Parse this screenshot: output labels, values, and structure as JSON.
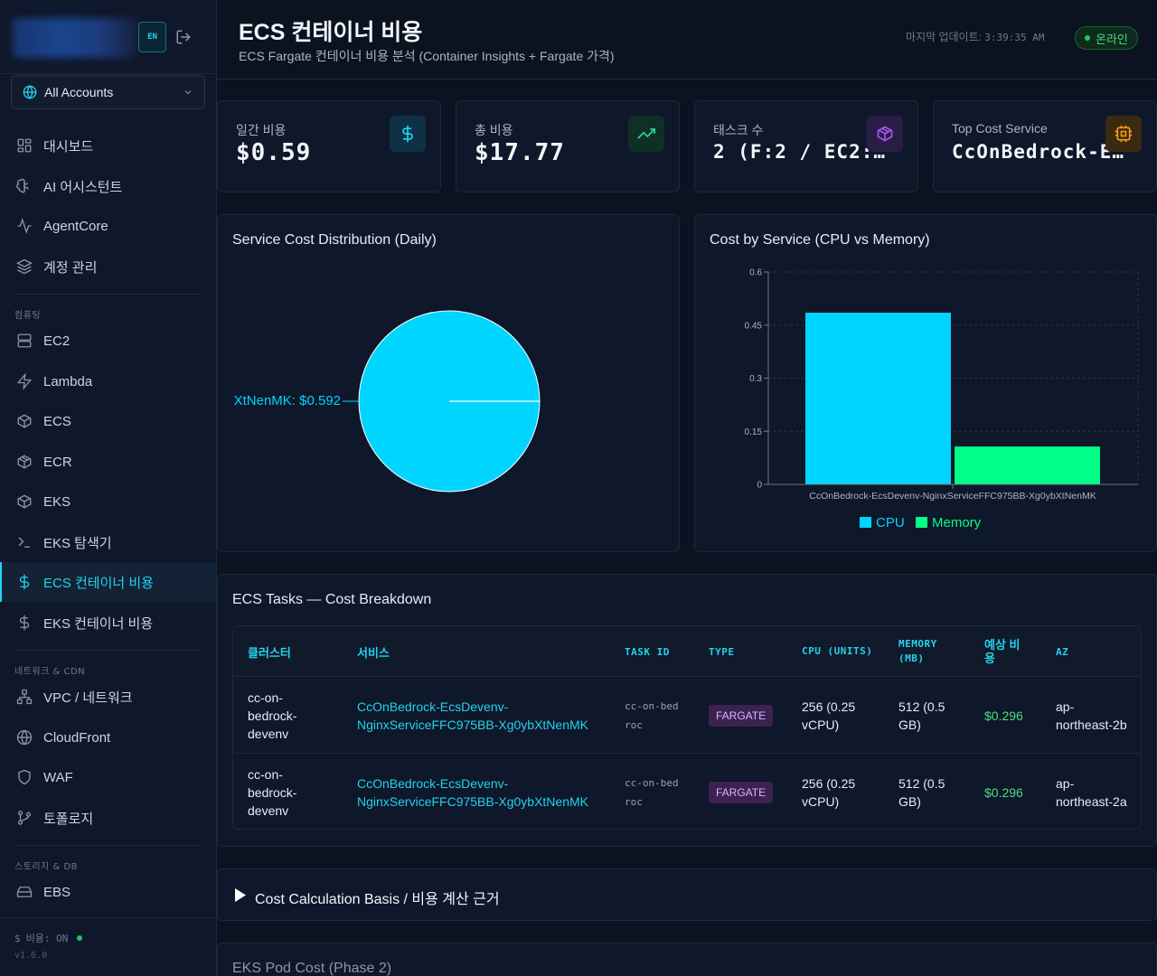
{
  "sidebar": {
    "lang": "EN",
    "account_selector": "All Accounts",
    "items": [
      {
        "label": "대시보드"
      },
      {
        "label": "AI 어시스턴트"
      },
      {
        "label": "AgentCore"
      },
      {
        "label": "계정 관리"
      },
      {
        "label": "EC2"
      },
      {
        "label": "Lambda"
      },
      {
        "label": "ECS"
      },
      {
        "label": "ECR"
      },
      {
        "label": "EKS"
      },
      {
        "label": "EKS 탐색기"
      },
      {
        "label": "ECS 컨테이너 비용"
      },
      {
        "label": "EKS 컨테이너 비용"
      },
      {
        "label": "VPC / 네트워크"
      },
      {
        "label": "CloudFront"
      },
      {
        "label": "WAF"
      },
      {
        "label": "토폴로지"
      },
      {
        "label": "EBS"
      }
    ],
    "sections": {
      "compute": "컴퓨팅",
      "network": "네트워크 & CDN",
      "storage": "스토리지 & DB"
    },
    "cost_status": "비용: ON",
    "version": "v1.6.0"
  },
  "header": {
    "title": "ECS 컨테이너 비용",
    "subtitle": "ECS Fargate 컨테이너 비용 분석 (Container Insights + Fargate 가격)",
    "updated_label": "마지막 업데이트:",
    "updated_time": "3:39:35 AM",
    "status": "온라인"
  },
  "stats": [
    {
      "label": "일간 비용",
      "value": "$0.59"
    },
    {
      "label": "총 비용",
      "value": "$17.77"
    },
    {
      "label": "태스크 수",
      "value": "2 (F:2 / EC2:…"
    },
    {
      "label": "Top Cost Service",
      "value": "CcOnBedrock-E…"
    }
  ],
  "pie": {
    "title": "Service Cost Distribution (Daily)",
    "label": "XtNenMK: $0.592"
  },
  "bar": {
    "title": "Cost by Service (CPU vs Memory)",
    "category": "CcOnBedrock-EcsDevenv-NginxServiceFFC975BB-Xg0ybXtNenMK",
    "ticks": [
      "0.6",
      "0.45",
      "0.3",
      "0.15",
      "0"
    ],
    "legend": [
      "CPU",
      "Memory"
    ]
  },
  "chart_data": [
    {
      "type": "pie",
      "title": "Service Cost Distribution (Daily)",
      "categories": [
        "CcOnBedrock-EcsDevenv-NginxServiceFFC975BB-Xg0ybXtNenMK"
      ],
      "values": [
        0.592
      ],
      "colors": [
        "#00d5ff"
      ]
    },
    {
      "type": "bar",
      "title": "Cost by Service (CPU vs Memory)",
      "categories": [
        "CcOnBedrock-EcsDevenv-NginxServiceFFC975BB-Xg0ybXtNenMK"
      ],
      "series": [
        {
          "name": "CPU",
          "values": [
            0.485
          ],
          "color": "#00d5ff"
        },
        {
          "name": "Memory",
          "values": [
            0.107
          ],
          "color": "#00ff87"
        }
      ],
      "ylim": [
        0,
        0.6
      ],
      "yticks": [
        0,
        0.15,
        0.3,
        0.45,
        0.6
      ],
      "grid": true,
      "legend": "bottom"
    }
  ],
  "table": {
    "title": "ECS Tasks — Cost Breakdown",
    "headers": [
      "클러스터",
      "서비스",
      "TASK ID",
      "TYPE",
      "CPU (UNITS)",
      "MEMORY (MB)",
      "예상 비용",
      "AZ"
    ],
    "rows": [
      [
        "cc-on-bedrock-devenv",
        "CcOnBedrock-EcsDevenv-NginxServiceFFC975BB-Xg0ybXtNenMK",
        "cc-on-bedroc",
        "FARGATE",
        "256 (0.25 vCPU)",
        "512 (0.5 GB)",
        "$0.296",
        "ap-northeast-2b"
      ],
      [
        "cc-on-bedrock-devenv",
        "CcOnBedrock-EcsDevenv-NginxServiceFFC975BB-Xg0ybXtNenMK",
        "cc-on-bedroc",
        "FARGATE",
        "256 (0.25 vCPU)",
        "512 (0.5 GB)",
        "$0.296",
        "ap-northeast-2a"
      ]
    ]
  },
  "calc_basis": "Cost Calculation Basis / 비용 계산 근거",
  "eks_section": "EKS Pod Cost (Phase 2)",
  "colors": {
    "accent": "#22d3ee",
    "cpu": "#00d5ff",
    "memory": "#00ff87",
    "cost": "#4ade80"
  }
}
